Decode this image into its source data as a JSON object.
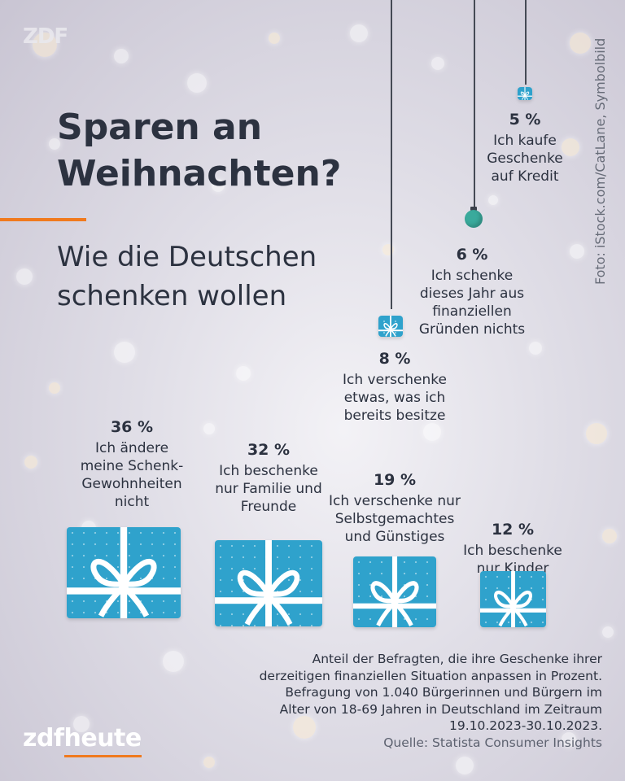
{
  "brand": {
    "watermark": "ZDF",
    "logo_left": "zdf",
    "logo_right": "heute"
  },
  "title": "Sparen an Weihnachten?",
  "subtitle": "Wie die Deutschen schenken wollen",
  "credit": "Foto: iStock.com/CatLane, Symbolbild",
  "colors": {
    "gift": "#2fa2cc",
    "accent": "#f07a1e",
    "ornament": "#3aaa9c",
    "text": "#2c3240"
  },
  "chart_data": {
    "type": "bar",
    "title": "Sparen an Weihnachten?",
    "subtitle": "Wie die Deutschen schenken wollen",
    "unit": "%",
    "categories": [
      "Ich ändere meine Schenk-Gewohnheiten nicht",
      "Ich beschenke nur Familie und Freunde",
      "Ich verschenke nur Selbstgemachtes und Günstiges",
      "Ich beschenke nur Kinder",
      "Ich verschenke etwas, was ich bereits besitze",
      "Ich schenke dieses Jahr aus finanziellen Gründen nichts",
      "Ich kaufe Geschenke auf Kredit"
    ],
    "values": [
      36,
      32,
      19,
      12,
      8,
      6,
      5
    ],
    "value_labels": [
      "36 %",
      "32 %",
      "19 %",
      "12 %",
      "8 %",
      "6 %",
      "5 %"
    ],
    "label_lines": [
      [
        "Ich ändere",
        "meine Schenk-",
        "Gewohnheiten",
        "nicht"
      ],
      [
        "Ich beschenke",
        "nur Familie und",
        "Freunde"
      ],
      [
        "Ich verschenke nur",
        "Selbstgemachtes",
        "und Günstiges"
      ],
      [
        "Ich beschenke",
        "nur Kinder"
      ],
      [
        "Ich verschenke",
        "etwas, was ich",
        "bereits besitze"
      ],
      [
        "Ich schenke",
        "dieses Jahr aus",
        "finanziellen",
        "Gründen nichts"
      ],
      [
        "Ich kaufe",
        "Geschenke",
        "auf Kredit"
      ]
    ],
    "note": "Anteil der Befragten, die ihre Geschenke ihrer derzeitigen finanziellen Situation anpassen in Prozent. Befragung von 1.040 Bürgerinnen und Bürgern im Alter von 18-69 Jahren in Deutschland im Zeitraum 19.10.2023-30.10.2023.",
    "source": "Quelle: Statista Consumer Insights"
  }
}
